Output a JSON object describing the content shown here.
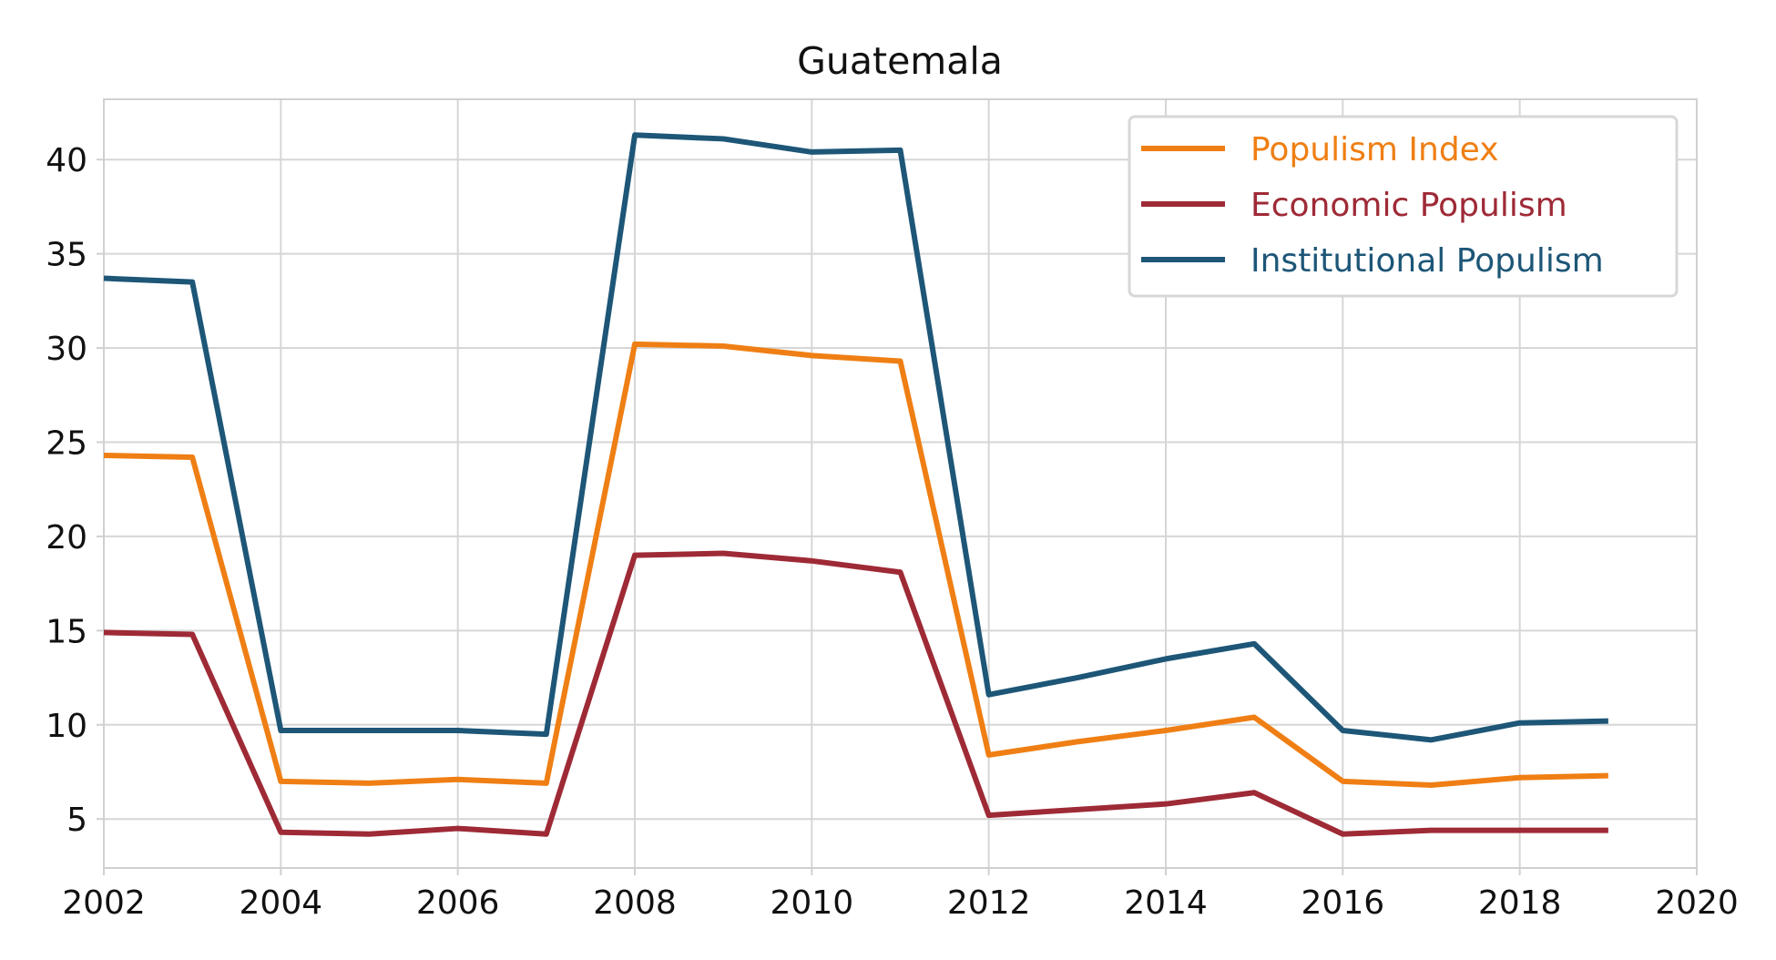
{
  "chart_data": {
    "type": "line",
    "title": "Guatemala",
    "xlabel": "",
    "ylabel": "",
    "xlim": [
      2002,
      2020
    ],
    "ylim": [
      2.4,
      43.2
    ],
    "xticks": [
      2002,
      2004,
      2006,
      2008,
      2010,
      2012,
      2014,
      2016,
      2018,
      2020
    ],
    "xtick_labels": [
      "2002",
      "2004",
      "2006",
      "2008",
      "2010",
      "2012",
      "2014",
      "2016",
      "2018",
      "2020"
    ],
    "yticks": [
      5,
      10,
      15,
      20,
      25,
      30,
      35,
      40
    ],
    "ytick_labels": [
      "5",
      "10",
      "15",
      "20",
      "25",
      "30",
      "35",
      "40"
    ],
    "grid": true,
    "legend_position": "top-right",
    "x": [
      2002,
      2003,
      2004,
      2005,
      2006,
      2007,
      2008,
      2009,
      2010,
      2011,
      2012,
      2013,
      2014,
      2015,
      2016,
      2017,
      2018,
      2019
    ],
    "series": [
      {
        "name": "Populism Index",
        "color": "#ef7f14",
        "values": [
          24.3,
          24.2,
          7.0,
          6.9,
          7.1,
          6.9,
          30.2,
          30.1,
          29.6,
          29.3,
          8.4,
          9.1,
          9.7,
          10.4,
          7.0,
          6.8,
          7.2,
          7.3
        ]
      },
      {
        "name": "Economic Populism",
        "color": "#9e2a36",
        "values": [
          14.9,
          14.8,
          4.3,
          4.2,
          4.5,
          4.2,
          19.0,
          19.1,
          18.7,
          18.1,
          5.2,
          5.5,
          5.8,
          6.4,
          4.2,
          4.4,
          4.4,
          4.4
        ]
      },
      {
        "name": "Institutional Populism",
        "color": "#1d5677",
        "values": [
          33.7,
          33.5,
          9.7,
          9.7,
          9.7,
          9.5,
          41.3,
          41.1,
          40.4,
          40.5,
          11.6,
          12.5,
          13.5,
          14.3,
          9.7,
          9.2,
          10.1,
          10.2
        ]
      }
    ]
  }
}
